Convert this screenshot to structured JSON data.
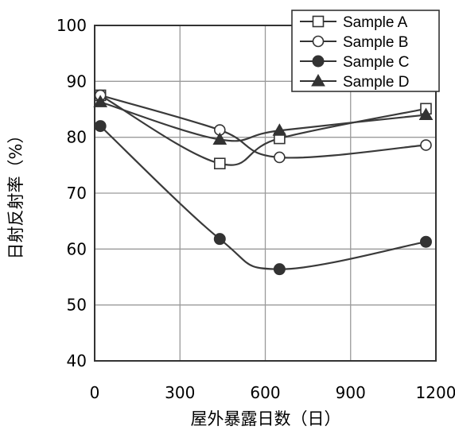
{
  "chart_data": {
    "type": "line",
    "title": "",
    "xlabel": "屋外暴露日数（日）",
    "ylabel": "日射反射率（%）",
    "xlim": [
      0,
      1200
    ],
    "ylim": [
      40,
      100
    ],
    "xticks": [
      0,
      300,
      600,
      900,
      1200
    ],
    "yticks": [
      40,
      50,
      60,
      70,
      80,
      90,
      100
    ],
    "grid": true,
    "legend_position": "top-right",
    "series": [
      {
        "name": "Sample A",
        "marker": "square-open",
        "x": [
          20,
          440,
          650,
          1165
        ],
        "y": [
          87.5,
          75.3,
          79.8,
          85.1
        ]
      },
      {
        "name": "Sample B",
        "marker": "circle-open",
        "x": [
          20,
          440,
          650,
          1165
        ],
        "y": [
          87.5,
          81.3,
          76.4,
          78.6
        ]
      },
      {
        "name": "Sample C",
        "marker": "circle-filled",
        "x": [
          20,
          440,
          650,
          1165
        ],
        "y": [
          82.0,
          61.8,
          56.4,
          61.3
        ]
      },
      {
        "name": "Sample D",
        "marker": "triangle-filled",
        "x": [
          20,
          440,
          650,
          1165
        ],
        "y": [
          86.3,
          79.6,
          81.2,
          84.0
        ]
      }
    ]
  }
}
